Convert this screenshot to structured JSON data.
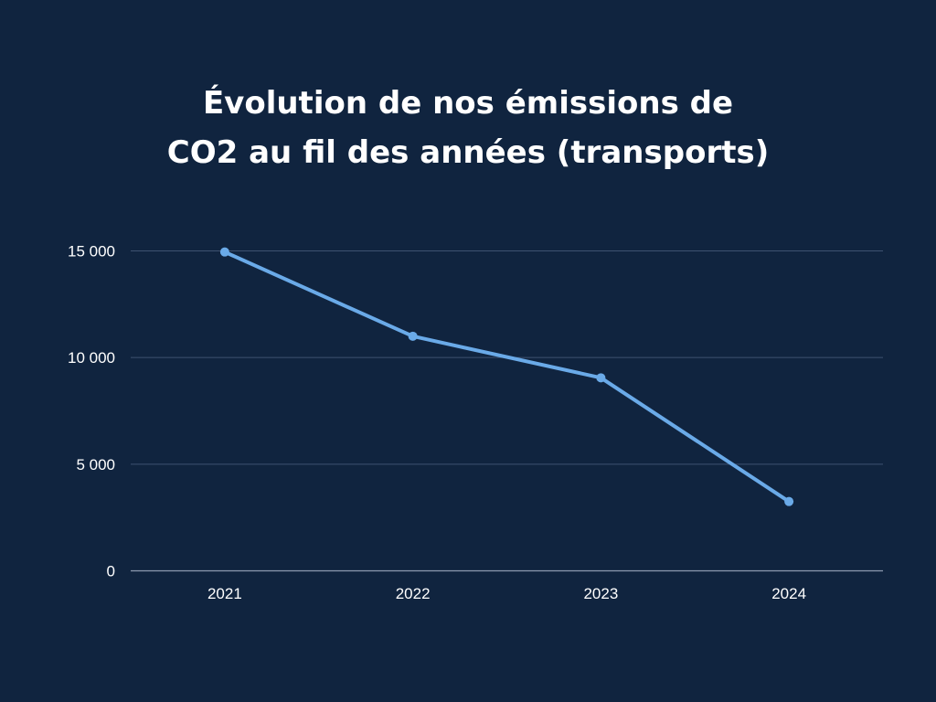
{
  "colors": {
    "background": "#10243f",
    "line": "#6aaae8",
    "grid": "#3e5270",
    "axis": "#8c9ab0",
    "text": "#ffffff"
  },
  "chart_data": {
    "type": "line",
    "title": [
      "Évolution de nos émissions de",
      "CO2 au fil des années (transports)"
    ],
    "categories": [
      "2021",
      "2022",
      "2023",
      "2024"
    ],
    "series": [
      {
        "values": [
          14950,
          11000,
          9050,
          3250
        ]
      }
    ],
    "ylim": [
      0,
      15000
    ],
    "yticks": [
      0,
      5000,
      10000,
      15000
    ],
    "ytick_labels": [
      "0",
      "5 000",
      "10 000",
      "15 000"
    ],
    "grid": true,
    "xlabel": "",
    "ylabel": ""
  }
}
